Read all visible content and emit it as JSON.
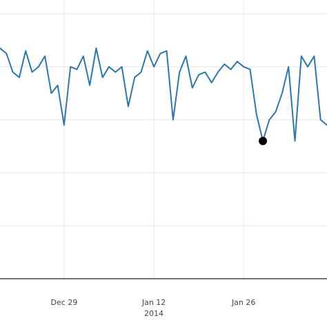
{
  "chart_data": {
    "type": "line",
    "title": "",
    "xlabel": "",
    "ylabel": "",
    "grid": true,
    "legend": "none",
    "x_ticks": [
      {
        "date": "2013-12-29",
        "label": "Dec 29",
        "sublabel": ""
      },
      {
        "date": "2014-01-12",
        "label": "Jan 12",
        "sublabel": "2014"
      },
      {
        "date": "2014-01-26",
        "label": "Jan 26",
        "sublabel": ""
      }
    ],
    "xlim": [
      "2013-12-19",
      "2014-02-08"
    ],
    "ylim": [
      0,
      100
    ],
    "series": [
      {
        "name": "",
        "color": "#2878b0",
        "points": [
          [
            "2013-12-19",
            87
          ],
          [
            "2013-12-20",
            85
          ],
          [
            "2013-12-21",
            78
          ],
          [
            "2013-12-22",
            76
          ],
          [
            "2013-12-23",
            86
          ],
          [
            "2013-12-24",
            78
          ],
          [
            "2013-12-25",
            80
          ],
          [
            "2013-12-26",
            84
          ],
          [
            "2013-12-27",
            70
          ],
          [
            "2013-12-28",
            73
          ],
          [
            "2013-12-29",
            58
          ],
          [
            "2013-12-30",
            80
          ],
          [
            "2013-12-31",
            79
          ],
          [
            "2014-01-01",
            84
          ],
          [
            "2014-01-02",
            73
          ],
          [
            "2014-01-03",
            87
          ],
          [
            "2014-01-04",
            76
          ],
          [
            "2014-01-05",
            80
          ],
          [
            "2014-01-06",
            78
          ],
          [
            "2014-01-07",
            80
          ],
          [
            "2014-01-08",
            65
          ],
          [
            "2014-01-09",
            76
          ],
          [
            "2014-01-10",
            78
          ],
          [
            "2014-01-11",
            86
          ],
          [
            "2014-01-12",
            80
          ],
          [
            "2014-01-13",
            85
          ],
          [
            "2014-01-14",
            86
          ],
          [
            "2014-01-15",
            60
          ],
          [
            "2014-01-16",
            78
          ],
          [
            "2014-01-17",
            84
          ],
          [
            "2014-01-18",
            72
          ],
          [
            "2014-01-19",
            77
          ],
          [
            "2014-01-20",
            78
          ],
          [
            "2014-01-21",
            74
          ],
          [
            "2014-01-22",
            78
          ],
          [
            "2014-01-23",
            81
          ],
          [
            "2014-01-24",
            79
          ],
          [
            "2014-01-25",
            82
          ],
          [
            "2014-01-26",
            80
          ],
          [
            "2014-01-27",
            79
          ],
          [
            "2014-01-28",
            62
          ],
          [
            "2014-01-29",
            52
          ],
          [
            "2014-01-30",
            60
          ],
          [
            "2014-01-31",
            63
          ],
          [
            "2014-02-01",
            70
          ],
          [
            "2014-02-02",
            80
          ],
          [
            "2014-02-03",
            52
          ],
          [
            "2014-02-04",
            84
          ],
          [
            "2014-02-05",
            80
          ],
          [
            "2014-02-06",
            84
          ],
          [
            "2014-02-07",
            60
          ],
          [
            "2014-02-08",
            58
          ]
        ]
      }
    ],
    "highlight_point": {
      "date": "2014-01-29",
      "value": 52,
      "color": "#000000"
    }
  }
}
